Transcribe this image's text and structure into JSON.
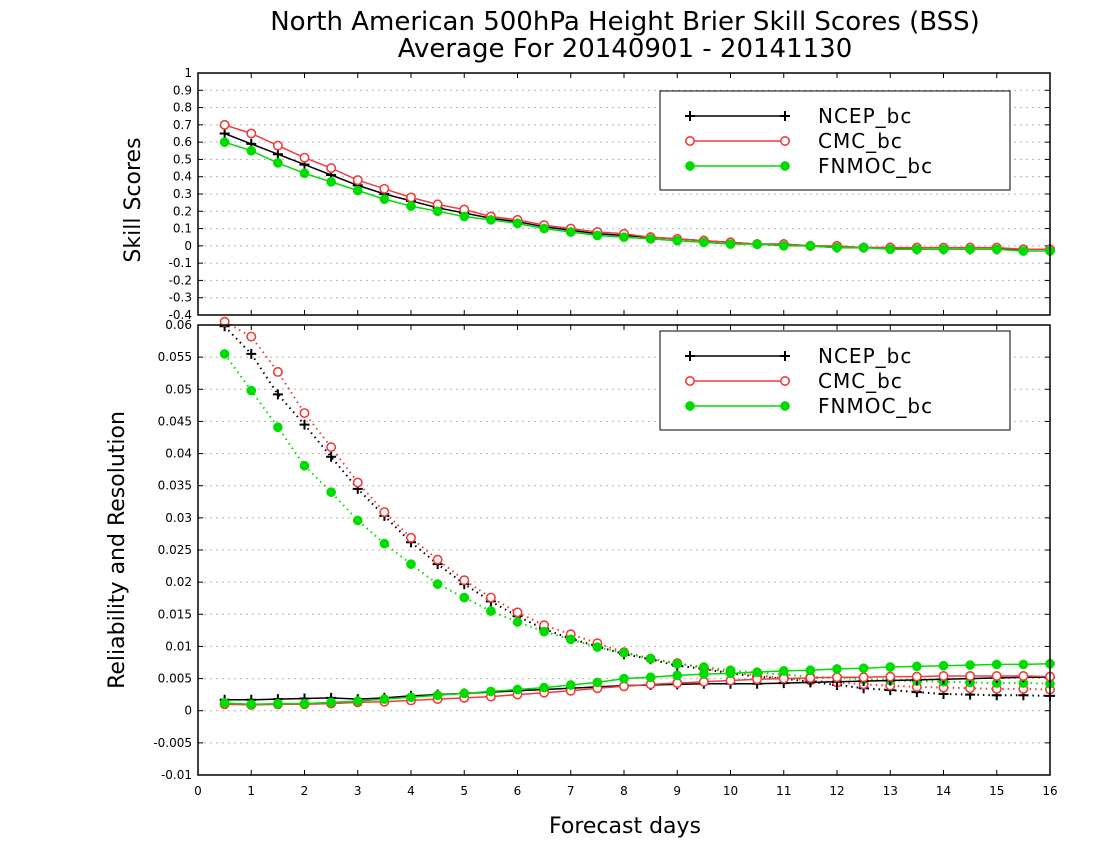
{
  "title_line1": "North American 500hPa Height Brier Skill Scores (BSS)",
  "title_line2": "Average For 20140901 - 20141130",
  "xlabel": "Forecast days",
  "colors": {
    "NCEP_bc": "#000000",
    "CMC_bc": "#f03c3c",
    "FNMOC_bc": "#00dc00",
    "grid": "#b4b4b4"
  },
  "chart_data": [
    {
      "type": "line",
      "panel": "top",
      "ylabel": "Skill Scores",
      "xlim": [
        0,
        16
      ],
      "ylim": [
        -0.4,
        1
      ],
      "yticks": [
        "-0.4",
        "-0.3",
        "-0.2",
        "-0.1",
        "0",
        "0.1",
        "0.2",
        "0.3",
        "0.4",
        "0.5",
        "0.6",
        "0.7",
        "0.8",
        "0.9",
        "1"
      ],
      "grid": true,
      "legend": {
        "placement": "top-right",
        "entries": [
          "NCEP_bc",
          "CMC_bc",
          "FNMOC_bc"
        ]
      },
      "x": [
        0.5,
        1,
        1.5,
        2,
        2.5,
        3,
        3.5,
        4,
        4.5,
        5,
        5.5,
        6,
        6.5,
        7,
        7.5,
        8,
        8.5,
        9,
        9.5,
        10,
        10.5,
        11,
        11.5,
        12,
        12.5,
        13,
        13.5,
        14,
        14.5,
        15,
        15.5,
        16
      ],
      "series": [
        {
          "name": "NCEP_bc",
          "marker": "plus",
          "style": "solid",
          "values": [
            0.65,
            0.59,
            0.53,
            0.47,
            0.41,
            0.35,
            0.3,
            0.26,
            0.22,
            0.19,
            0.16,
            0.14,
            0.11,
            0.09,
            0.07,
            0.06,
            0.05,
            0.04,
            0.03,
            0.02,
            0.01,
            0.01,
            0.0,
            -0.01,
            -0.01,
            -0.01,
            -0.02,
            -0.02,
            -0.02,
            -0.02,
            -0.02,
            -0.02
          ]
        },
        {
          "name": "CMC_bc",
          "marker": "open-circle",
          "style": "solid",
          "values": [
            0.7,
            0.65,
            0.58,
            0.51,
            0.45,
            0.38,
            0.33,
            0.28,
            0.24,
            0.21,
            0.17,
            0.15,
            0.12,
            0.1,
            0.08,
            0.07,
            0.05,
            0.04,
            0.03,
            0.02,
            0.01,
            0.01,
            0.0,
            0.0,
            -0.01,
            -0.01,
            -0.01,
            -0.01,
            -0.01,
            -0.01,
            -0.02,
            -0.02
          ]
        },
        {
          "name": "FNMOC_bc",
          "marker": "filled-circle",
          "style": "solid",
          "values": [
            0.6,
            0.55,
            0.48,
            0.42,
            0.37,
            0.32,
            0.27,
            0.23,
            0.2,
            0.17,
            0.15,
            0.13,
            0.1,
            0.08,
            0.06,
            0.05,
            0.04,
            0.03,
            0.02,
            0.01,
            0.01,
            0.0,
            0.0,
            -0.01,
            -0.01,
            -0.02,
            -0.02,
            -0.02,
            -0.02,
            -0.02,
            -0.03,
            -0.03
          ]
        }
      ]
    },
    {
      "type": "line",
      "panel": "bottom",
      "ylabel": "Reliability and Resolution",
      "xlabel": "Forecast days",
      "xlim": [
        0,
        16
      ],
      "xticks": [
        "0",
        "1",
        "2",
        "3",
        "4",
        "5",
        "6",
        "7",
        "8",
        "9",
        "10",
        "11",
        "12",
        "13",
        "14",
        "15",
        "16"
      ],
      "ylim": [
        -0.01,
        0.06
      ],
      "yticks": [
        "-0.01",
        "-0.005",
        "0",
        "0.005",
        "0.01",
        "0.015",
        "0.02",
        "0.025",
        "0.03",
        "0.035",
        "0.04",
        "0.045",
        "0.05",
        "0.055",
        "0.06"
      ],
      "grid": true,
      "legend": {
        "placement": "top-right",
        "entries": [
          "NCEP_bc",
          "CMC_bc",
          "FNMOC_bc"
        ]
      },
      "x": [
        0.5,
        1,
        1.5,
        2,
        2.5,
        3,
        3.5,
        4,
        4.5,
        5,
        5.5,
        6,
        6.5,
        7,
        7.5,
        8,
        8.5,
        9,
        9.5,
        10,
        10.5,
        11,
        11.5,
        12,
        12.5,
        13,
        13.5,
        14,
        14.5,
        15,
        15.5,
        16
      ],
      "series": [
        {
          "name": "NCEP_bc",
          "marker": "plus",
          "style": "dotted",
          "values": [
            0.0598,
            0.0555,
            0.0492,
            0.0445,
            0.0395,
            0.0345,
            0.0303,
            0.0262,
            0.0228,
            0.0197,
            0.017,
            0.0147,
            0.0127,
            0.0112,
            0.01,
            0.0088,
            0.008,
            0.007,
            0.0065,
            0.0058,
            0.0053,
            0.005,
            0.0045,
            0.004,
            0.0035,
            0.0032,
            0.0029,
            0.0026,
            0.0025,
            0.0024,
            0.0024,
            0.0023
          ]
        },
        {
          "name": "CMC_bc",
          "marker": "open-circle",
          "style": "dotted",
          "values": [
            0.0605,
            0.0582,
            0.0527,
            0.0463,
            0.041,
            0.0355,
            0.0309,
            0.0269,
            0.0235,
            0.0203,
            0.0176,
            0.0153,
            0.0133,
            0.0119,
            0.0105,
            0.0091,
            0.0081,
            0.0074,
            0.0066,
            0.006,
            0.0055,
            0.0051,
            0.0047,
            0.0044,
            0.0041,
            0.0039,
            0.0037,
            0.0036,
            0.0035,
            0.0034,
            0.0034,
            0.0033
          ]
        },
        {
          "name": "FNMOC_bc",
          "marker": "filled-circle",
          "style": "dotted",
          "values": [
            0.0555,
            0.0498,
            0.0441,
            0.0381,
            0.034,
            0.0296,
            0.026,
            0.0228,
            0.0197,
            0.0176,
            0.0155,
            0.0138,
            0.0123,
            0.0111,
            0.0099,
            0.009,
            0.0081,
            0.0073,
            0.0068,
            0.0063,
            0.0059,
            0.0056,
            0.0053,
            0.0051,
            0.0049,
            0.0047,
            0.0046,
            0.0045,
            0.0044,
            0.0043,
            0.0043,
            0.0042
          ]
        },
        {
          "name": "NCEP_bc",
          "marker": "plus",
          "style": "solid",
          "values": [
            0.0017,
            0.0017,
            0.0018,
            0.0019,
            0.002,
            0.0018,
            0.002,
            0.0023,
            0.0025,
            0.0027,
            0.0029,
            0.0031,
            0.0033,
            0.0035,
            0.0037,
            0.0039,
            0.004,
            0.0041,
            0.0042,
            0.0042,
            0.0042,
            0.0043,
            0.0044,
            0.0045,
            0.0046,
            0.0047,
            0.0048,
            0.0049,
            0.005,
            0.0051,
            0.0052,
            0.0052
          ]
        },
        {
          "name": "CMC_bc",
          "marker": "open-circle",
          "style": "solid",
          "values": [
            0.001,
            0.0009,
            0.001,
            0.001,
            0.0011,
            0.0013,
            0.0014,
            0.0016,
            0.0018,
            0.002,
            0.0022,
            0.0025,
            0.0028,
            0.0031,
            0.0035,
            0.0038,
            0.0041,
            0.0043,
            0.0045,
            0.0047,
            0.0049,
            0.005,
            0.0051,
            0.0052,
            0.0052,
            0.0053,
            0.0053,
            0.0054,
            0.0054,
            0.0054,
            0.0054,
            0.0053
          ]
        },
        {
          "name": "FNMOC_bc",
          "marker": "filled-circle",
          "style": "solid",
          "values": [
            0.0012,
            0.001,
            0.0011,
            0.0011,
            0.0013,
            0.0015,
            0.0018,
            0.0021,
            0.0024,
            0.0027,
            0.003,
            0.0033,
            0.0036,
            0.004,
            0.0044,
            0.005,
            0.0052,
            0.0055,
            0.0057,
            0.0058,
            0.006,
            0.0062,
            0.0063,
            0.0065,
            0.0066,
            0.0068,
            0.0069,
            0.007,
            0.0071,
            0.0072,
            0.0072,
            0.0073
          ]
        }
      ]
    }
  ]
}
